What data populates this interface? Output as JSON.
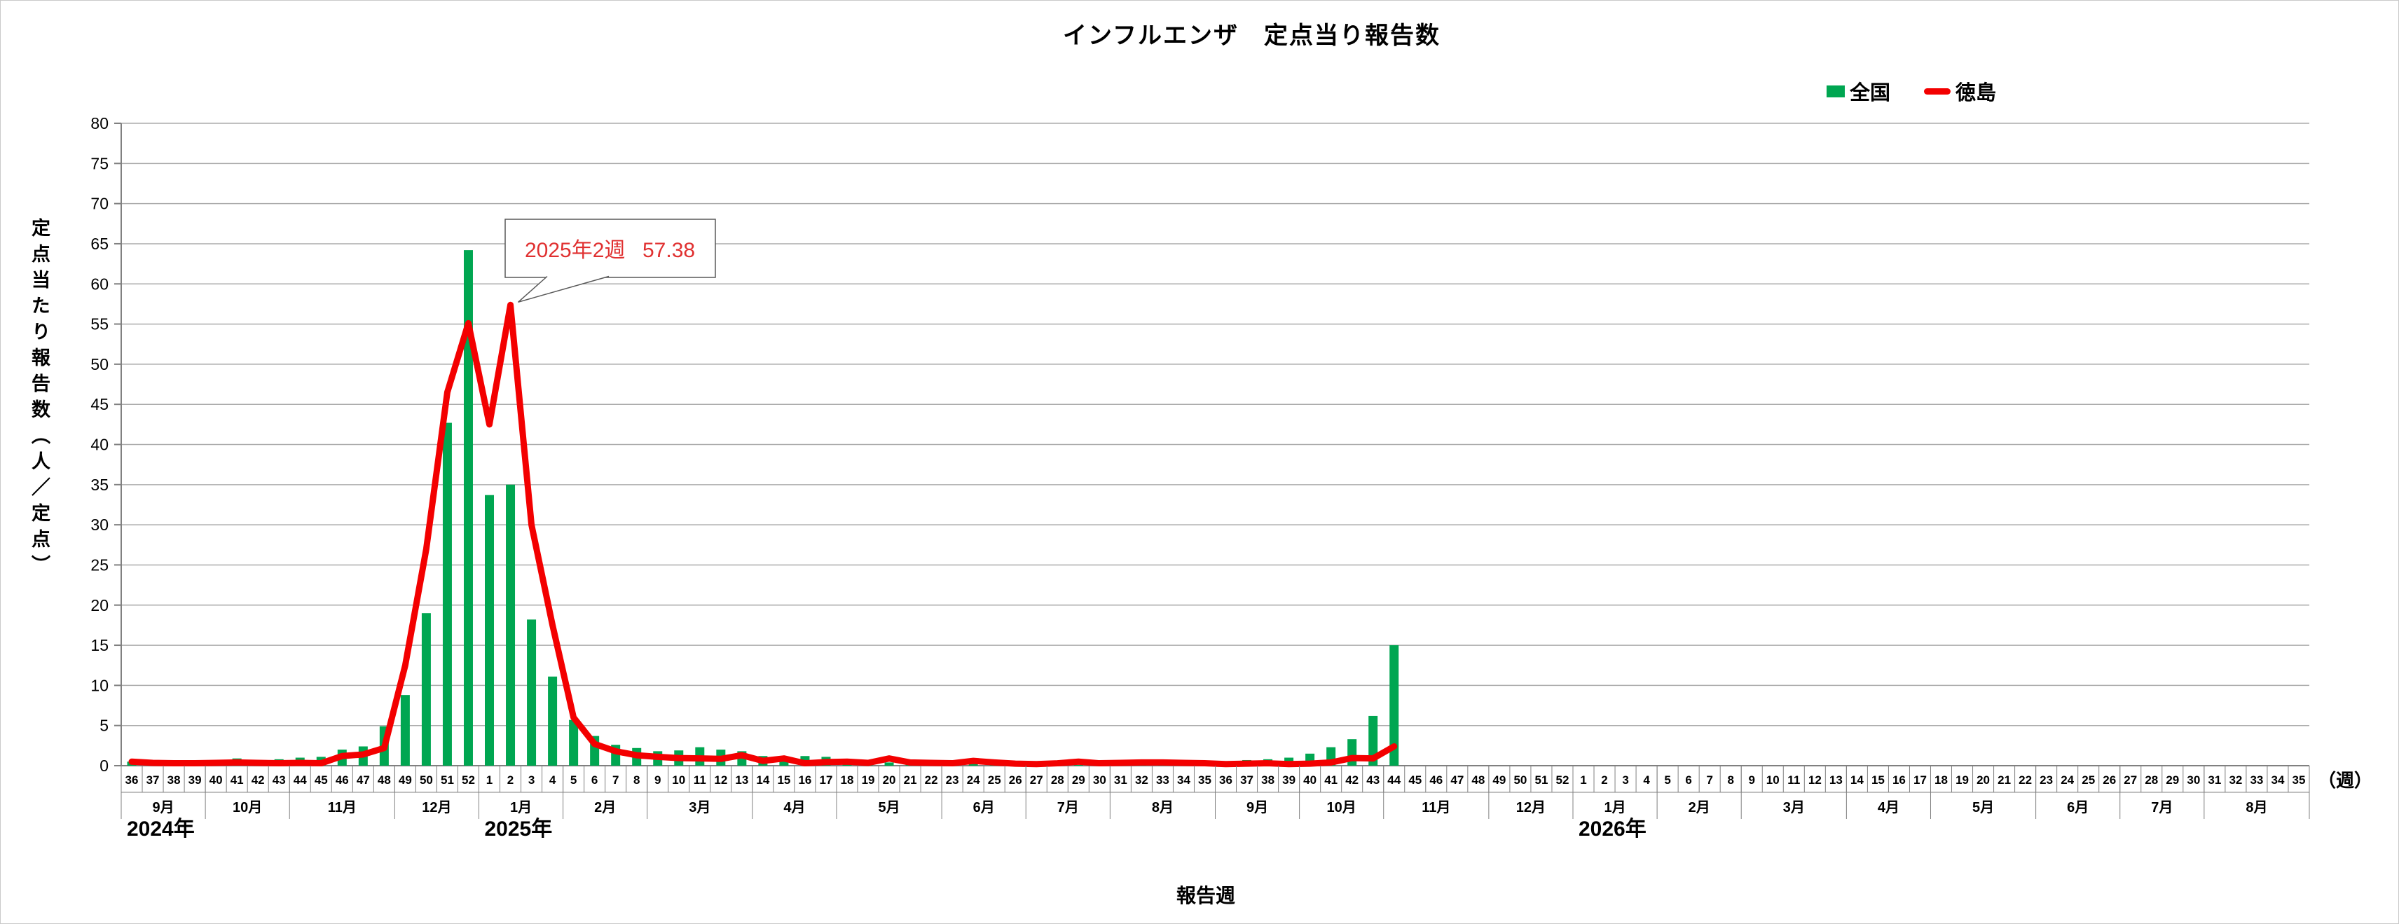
{
  "chart_data": {
    "type": "bar",
    "title": "インフルエンザ　定点当り報告数",
    "ylabel": "定点当たり報告数（人／定点）",
    "xlabel": "報告週",
    "x_unit": "（週）",
    "ylim": [
      0,
      80
    ],
    "ytick_step": 5,
    "grid": true,
    "legend_position": "top-right",
    "years": [
      {
        "label": "2024年",
        "months": [
          {
            "label": "9月",
            "weeks": [
              36,
              37,
              38,
              39
            ]
          },
          {
            "label": "10月",
            "weeks": [
              40,
              41,
              42,
              43
            ]
          },
          {
            "label": "11月",
            "weeks": [
              44,
              45,
              46,
              47,
              48
            ]
          },
          {
            "label": "12月",
            "weeks": [
              49,
              50,
              51,
              52
            ]
          }
        ]
      },
      {
        "label": "2025年",
        "months": [
          {
            "label": "1月",
            "weeks": [
              1,
              2,
              3,
              4
            ]
          },
          {
            "label": "2月",
            "weeks": [
              5,
              6,
              7,
              8
            ]
          },
          {
            "label": "3月",
            "weeks": [
              9,
              10,
              11,
              12,
              13
            ]
          },
          {
            "label": "4月",
            "weeks": [
              14,
              15,
              16,
              17
            ]
          },
          {
            "label": "5月",
            "weeks": [
              18,
              19,
              20,
              21,
              22
            ]
          },
          {
            "label": "6月",
            "weeks": [
              23,
              24,
              25,
              26
            ]
          },
          {
            "label": "7月",
            "weeks": [
              27,
              28,
              29,
              30
            ]
          },
          {
            "label": "8月",
            "weeks": [
              31,
              32,
              33,
              34,
              35
            ]
          },
          {
            "label": "9月",
            "weeks": [
              36,
              37,
              38,
              39
            ]
          },
          {
            "label": "10月",
            "weeks": [
              40,
              41,
              42,
              43
            ]
          },
          {
            "label": "11月",
            "weeks": [
              44,
              45,
              46,
              47,
              48
            ]
          },
          {
            "label": "12月",
            "weeks": [
              49,
              50,
              51,
              52
            ]
          }
        ]
      },
      {
        "label": "2026年",
        "months": [
          {
            "label": "1月",
            "weeks": [
              1,
              2,
              3,
              4
            ]
          },
          {
            "label": "2月",
            "weeks": [
              5,
              6,
              7,
              8
            ]
          },
          {
            "label": "3月",
            "weeks": [
              9,
              10,
              11,
              12,
              13
            ]
          },
          {
            "label": "4月",
            "weeks": [
              14,
              15,
              16,
              17
            ]
          },
          {
            "label": "5月",
            "weeks": [
              18,
              19,
              20,
              21,
              22
            ]
          },
          {
            "label": "6月",
            "weeks": [
              23,
              24,
              25,
              26
            ]
          },
          {
            "label": "7月",
            "weeks": [
              27,
              28,
              29,
              30
            ]
          },
          {
            "label": "8月",
            "weeks": [
              31,
              32,
              33,
              34,
              35
            ]
          }
        ]
      }
    ],
    "series": [
      {
        "name": "全国",
        "type": "bar",
        "color": "#00A651",
        "values": [
          0.5,
          0.3,
          0.5,
          0.6,
          0.7,
          0.9,
          0.7,
          0.8,
          1.0,
          1.1,
          2.0,
          2.4,
          4.9,
          8.8,
          19.0,
          42.7,
          64.2,
          33.7,
          35.0,
          18.2,
          11.1,
          5.7,
          3.7,
          2.6,
          2.2,
          1.8,
          1.9,
          2.3,
          2.0,
          1.8,
          1.2,
          1.1,
          1.2,
          1.1,
          0.5,
          0.3,
          0.4,
          0.2,
          0.2,
          0.2,
          0.3,
          0.25,
          0.2,
          0.1,
          0.1,
          0.1,
          0.1,
          0.1,
          0.1,
          0.1,
          0.1,
          0.15,
          0.2,
          0.7,
          0.8,
          1.0,
          1.5,
          2.3,
          3.3,
          6.2,
          15.0,
          null,
          null,
          null,
          null,
          null,
          null,
          null,
          null,
          null,
          null,
          null,
          null,
          null,
          null,
          null,
          null,
          null,
          null,
          null,
          null,
          null,
          null,
          null,
          null,
          null,
          null,
          null,
          null,
          null,
          null,
          null,
          null,
          null,
          null,
          null,
          null,
          null,
          null,
          null,
          null,
          null,
          null,
          null
        ]
      },
      {
        "name": "徳島",
        "type": "line",
        "color": "#F30000",
        "values": [
          0.5,
          0.35,
          0.3,
          0.3,
          0.35,
          0.4,
          0.35,
          0.3,
          0.35,
          0.3,
          1.2,
          1.4,
          2.2,
          12.5,
          27.0,
          46.5,
          55.1,
          42.5,
          57.38,
          30.0,
          17.5,
          6.0,
          2.7,
          1.8,
          1.3,
          1.1,
          0.95,
          0.9,
          0.85,
          1.3,
          0.6,
          0.9,
          0.3,
          0.45,
          0.5,
          0.35,
          0.9,
          0.4,
          0.35,
          0.3,
          0.6,
          0.4,
          0.25,
          0.2,
          0.3,
          0.5,
          0.3,
          0.35,
          0.4,
          0.4,
          0.35,
          0.3,
          0.2,
          0.25,
          0.3,
          0.2,
          0.25,
          0.4,
          0.95,
          0.9,
          2.4,
          null,
          null,
          null,
          null,
          null,
          null,
          null,
          null,
          null,
          null,
          null,
          null,
          null,
          null,
          null,
          null,
          null,
          null,
          null,
          null,
          null,
          null,
          null,
          null,
          null,
          null,
          null,
          null,
          null,
          null,
          null,
          null,
          null,
          null,
          null,
          null,
          null,
          null,
          null,
          null,
          null,
          null,
          null
        ]
      }
    ],
    "annotation": {
      "label": "2025年2週",
      "value": "57.38",
      "anchor_year": "2025年",
      "anchor_week": 2,
      "text_color": "#E03030"
    }
  }
}
